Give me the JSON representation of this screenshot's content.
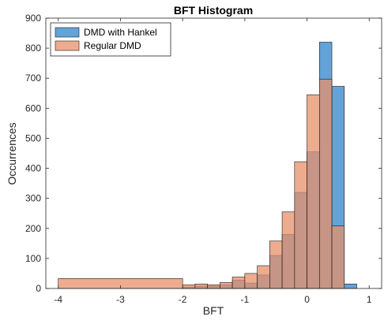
{
  "chart_data": {
    "type": "bar",
    "title": "BFT Histogram",
    "xlabel": "BFT",
    "ylabel": "Occurrences",
    "xlim": [
      -4.2,
      1.2
    ],
    "ylim": [
      0,
      900
    ],
    "xticks": [
      -4,
      -3,
      -2,
      -1,
      0,
      1
    ],
    "yticks": [
      0,
      100,
      200,
      300,
      400,
      500,
      600,
      700,
      800,
      900
    ],
    "grid": false,
    "legend_position": "top-left",
    "overlap_color": "#a56a5e",
    "series": [
      {
        "name": "DMD with Hankel",
        "color": "#5b9ed6",
        "bins": [
          {
            "x0": -2.0,
            "x1": -1.8,
            "value": 5
          },
          {
            "x0": -1.8,
            "x1": -1.6,
            "value": 8
          },
          {
            "x0": -1.6,
            "x1": -1.4,
            "value": 8
          },
          {
            "x0": -1.4,
            "x1": -1.2,
            "value": 12
          },
          {
            "x0": -1.2,
            "x1": -1.0,
            "value": 28
          },
          {
            "x0": -1.0,
            "x1": -0.8,
            "value": 18
          },
          {
            "x0": -0.8,
            "x1": -0.6,
            "value": 45
          },
          {
            "x0": -0.6,
            "x1": -0.4,
            "value": 110
          },
          {
            "x0": -0.4,
            "x1": -0.2,
            "value": 180
          },
          {
            "x0": -0.2,
            "x1": 0.0,
            "value": 320
          },
          {
            "x0": 0.0,
            "x1": 0.2,
            "value": 455
          },
          {
            "x0": 0.2,
            "x1": 0.4,
            "value": 820
          },
          {
            "x0": 0.4,
            "x1": 0.6,
            "value": 673
          },
          {
            "x0": 0.6,
            "x1": 0.8,
            "value": 15
          }
        ]
      },
      {
        "name": "Regular DMD",
        "color": "#e8906a",
        "bins": [
          {
            "x0": -4.0,
            "x1": -2.0,
            "value": 33
          },
          {
            "x0": -2.0,
            "x1": -1.8,
            "value": 12
          },
          {
            "x0": -1.8,
            "x1": -1.6,
            "value": 15
          },
          {
            "x0": -1.6,
            "x1": -1.4,
            "value": 12
          },
          {
            "x0": -1.4,
            "x1": -1.2,
            "value": 20
          },
          {
            "x0": -1.2,
            "x1": -1.0,
            "value": 38
          },
          {
            "x0": -1.0,
            "x1": -0.8,
            "value": 50
          },
          {
            "x0": -0.8,
            "x1": -0.6,
            "value": 76
          },
          {
            "x0": -0.6,
            "x1": -0.4,
            "value": 158
          },
          {
            "x0": -0.4,
            "x1": -0.2,
            "value": 255
          },
          {
            "x0": -0.2,
            "x1": 0.0,
            "value": 422
          },
          {
            "x0": 0.0,
            "x1": 0.2,
            "value": 645
          },
          {
            "x0": 0.2,
            "x1": 0.4,
            "value": 697
          },
          {
            "x0": 0.4,
            "x1": 0.6,
            "value": 208
          }
        ]
      }
    ]
  }
}
